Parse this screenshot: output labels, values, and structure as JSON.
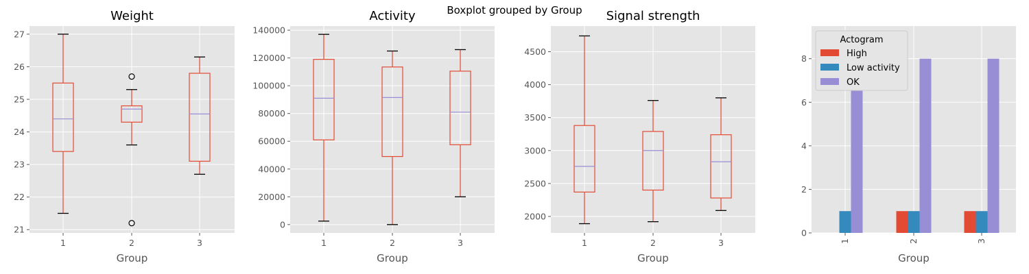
{
  "figure": {
    "suptitle": "Boxplot grouped by Group"
  },
  "colors": {
    "box": "#E24A33",
    "median": "#988ED5",
    "whisker": "#E24A33",
    "cap": "#000000",
    "panel_bg": "#E5E5E5",
    "grid": "#FFFFFF",
    "high": "#E24A33",
    "low": "#348ABD",
    "ok": "#988ED5"
  },
  "chart_data": [
    {
      "type": "box",
      "title": "Weight",
      "xlabel": "Group",
      "categories": [
        "1",
        "2",
        "3"
      ],
      "ylim": [
        20.9,
        27.25
      ],
      "yticks": [
        "21",
        "22",
        "23",
        "24",
        "25",
        "26",
        "27"
      ],
      "boxes": [
        {
          "whislo": 21.5,
          "q1": 23.4,
          "med": 24.4,
          "q3": 25.5,
          "whishi": 27.0,
          "fliers": []
        },
        {
          "whislo": 23.6,
          "q1": 24.3,
          "med": 24.7,
          "q3": 24.8,
          "whishi": 25.3,
          "fliers": [
            25.7,
            21.2
          ]
        },
        {
          "whislo": 22.7,
          "q1": 23.1,
          "med": 24.55,
          "q3": 25.8,
          "whishi": 26.3,
          "fliers": []
        }
      ]
    },
    {
      "type": "box",
      "title": "Activity",
      "xlabel": "Group",
      "categories": [
        "1",
        "2",
        "3"
      ],
      "ylim": [
        -6000,
        143000
      ],
      "yticks": [
        "0",
        "20000",
        "40000",
        "60000",
        "80000",
        "100000",
        "120000",
        "140000"
      ],
      "boxes": [
        {
          "whislo": 2500,
          "q1": 61000,
          "med": 91000,
          "q3": 119000,
          "whishi": 137000,
          "fliers": []
        },
        {
          "whislo": 0,
          "q1": 49000,
          "med": 91500,
          "q3": 113500,
          "whishi": 125000,
          "fliers": []
        },
        {
          "whislo": 20000,
          "q1": 57500,
          "med": 81000,
          "q3": 110500,
          "whishi": 126000,
          "fliers": []
        }
      ]
    },
    {
      "type": "box",
      "title": "Signal strength",
      "xlabel": "Group",
      "categories": [
        "1",
        "2",
        "3"
      ],
      "ylim": [
        1750,
        4890
      ],
      "yticks": [
        "2000",
        "2500",
        "3000",
        "3500",
        "4000",
        "4500"
      ],
      "boxes": [
        {
          "whislo": 1890,
          "q1": 2370,
          "med": 2760,
          "q3": 3380,
          "whishi": 4740,
          "fliers": []
        },
        {
          "whislo": 1920,
          "q1": 2400,
          "med": 3000,
          "q3": 3290,
          "whishi": 3760,
          "fliers": []
        },
        {
          "whislo": 2090,
          "q1": 2280,
          "med": 2830,
          "q3": 3240,
          "whishi": 3800,
          "fliers": []
        }
      ]
    },
    {
      "type": "bar",
      "title": "",
      "xlabel": "Group",
      "categories": [
        "1",
        "2",
        "3"
      ],
      "ylim": [
        0,
        9.5
      ],
      "yticks": [
        "0",
        "2",
        "4",
        "6",
        "8"
      ],
      "legend_title": "Actogram",
      "legend_position": "upper-left",
      "series": [
        {
          "name": "High",
          "values": [
            0,
            1,
            1
          ]
        },
        {
          "name": "Low activity",
          "values": [
            1,
            1,
            1
          ]
        },
        {
          "name": "OK",
          "values": [
            8,
            8,
            8
          ]
        }
      ]
    }
  ]
}
